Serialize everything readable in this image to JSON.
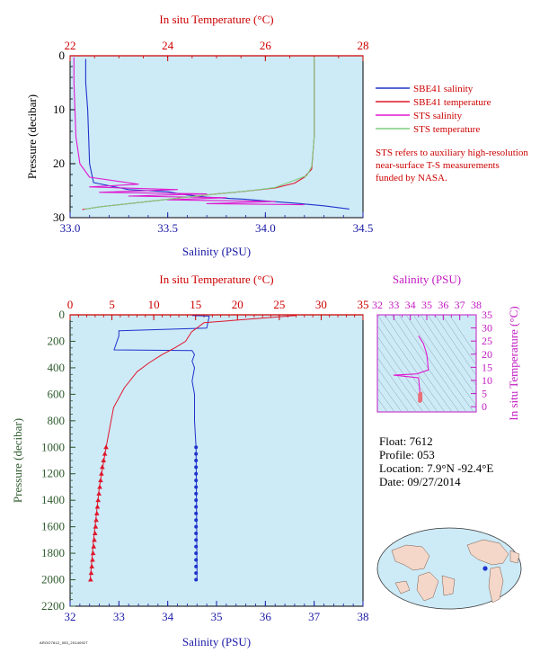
{
  "colors": {
    "plot_bg": "#cdeaf7",
    "blue": "#1f33cc",
    "red": "#e0162b",
    "magenta": "#e01ad0",
    "green": "#7fce7f",
    "axis_blue": "#1a1aa6",
    "axis_red": "#cc0000",
    "axis_green": "#2e5b2e",
    "axis_magenta": "#c21bc2"
  },
  "chart_data": [
    {
      "type": "line",
      "title": "",
      "x_top_label": "In situ Temperature (°C)",
      "x_top_ticks": [
        "22",
        "24",
        "26",
        "28"
      ],
      "x_top_lim": [
        22,
        28
      ],
      "x_bottom_label": "Salinity (PSU)",
      "x_bottom_ticks": [
        "33.0",
        "33.5",
        "34.0",
        "34.5"
      ],
      "x_bottom_lim": [
        33.0,
        34.5
      ],
      "ylabel": "Pressure (decibar)",
      "y_ticks": [
        "0",
        "10",
        "20",
        "30"
      ],
      "ylim": [
        0,
        30
      ],
      "y_inverted": true,
      "legend": [
        "SBE41 salinity",
        "SBE41 temperature",
        "STS salinity",
        "STS temperature"
      ],
      "note": "STS refers to auxiliary high-resolution near-surface T-S measurements funded by NASA.",
      "series": [
        {
          "name": "SBE41 salinity",
          "axis": "salinity",
          "color": "blue",
          "x": [
            33.08,
            33.08,
            33.09,
            33.1,
            33.12,
            33.3,
            33.5,
            33.6,
            33.7,
            33.9,
            34.0,
            34.15,
            34.3,
            34.43
          ],
          "y": [
            0.6,
            5,
            10,
            20,
            23.5,
            24.8,
            25.2,
            25.8,
            26.2,
            26.6,
            26.9,
            27.3,
            27.8,
            28.4
          ]
        },
        {
          "name": "SBE41 temperature",
          "axis": "temperature",
          "color": "red",
          "x": [
            27.0,
            27.0,
            27.0,
            26.95,
            26.8,
            26.6,
            26.2,
            25.6,
            25.0,
            24.4,
            23.8,
            23.2,
            22.6,
            22.25
          ],
          "y": [
            0.6,
            5,
            15,
            21,
            22.5,
            23.6,
            24.5,
            25.1,
            25.6,
            26.2,
            26.8,
            27.4,
            28.0,
            28.5
          ]
        },
        {
          "name": "STS salinity",
          "axis": "salinity",
          "color": "magenta",
          "x": [
            33.02,
            33.02,
            33.03,
            33.05,
            33.1,
            33.35,
            33.1,
            33.55,
            33.15,
            33.7,
            33.3,
            33.8,
            33.5,
            34.05,
            33.7,
            34.2
          ],
          "y": [
            0.3,
            5,
            15,
            20,
            22.5,
            23.8,
            24.3,
            24.8,
            25.3,
            25.6,
            26.0,
            26.3,
            26.7,
            27.0,
            27.4,
            27.6
          ]
        },
        {
          "name": "STS temperature",
          "axis": "temperature",
          "color": "green",
          "x": [
            27.0,
            27.0,
            27.0,
            26.95,
            26.85,
            26.5,
            26.2,
            25.7,
            25.1,
            24.5,
            23.9,
            23.3,
            22.7,
            22.3
          ],
          "y": [
            0.3,
            5,
            15,
            20.5,
            22.2,
            23.4,
            24.4,
            25.0,
            25.5,
            26.1,
            26.7,
            27.3,
            27.9,
            28.4
          ]
        }
      ]
    },
    {
      "type": "line",
      "title": "",
      "x_top_label": "In situ Temperature (°C)",
      "x_top_ticks": [
        "0",
        "5",
        "10",
        "15",
        "20",
        "25",
        "30",
        "35"
      ],
      "x_top_lim": [
        0,
        35
      ],
      "x_bottom_label": "Salinity (PSU)",
      "x_bottom_ticks": [
        "32",
        "33",
        "34",
        "35",
        "36",
        "37",
        "38"
      ],
      "x_bottom_lim": [
        32,
        38
      ],
      "ylabel": "Pressure (decibar)",
      "y_ticks": [
        "0",
        "200",
        "400",
        "600",
        "800",
        "1000",
        "1200",
        "1400",
        "1600",
        "1800",
        "2000",
        "2200"
      ],
      "ylim": [
        0,
        2200
      ],
      "y_inverted": true,
      "series": [
        {
          "axis": "salinity",
          "color": "blue",
          "x": [
            34.5,
            34.85,
            34.8,
            33.0,
            33.0,
            32.9,
            34.5,
            34.55,
            34.5,
            34.55,
            34.5,
            34.55,
            34.55,
            34.58,
            34.6
          ],
          "y": [
            5,
            10,
            100,
            120,
            160,
            265,
            270,
            300,
            350,
            400,
            500,
            600,
            800,
            1000,
            2000
          ]
        },
        {
          "axis": "temperature",
          "color": "red",
          "x": [
            27.0,
            16.0,
            14.5,
            13.8,
            12.5,
            11.0,
            9.5,
            8.0,
            6.5,
            5.2,
            4.3,
            3.5,
            2.8,
            2.4
          ],
          "y": [
            5,
            60,
            130,
            200,
            250,
            300,
            360,
            430,
            550,
            700,
            1000,
            1300,
            1700,
            2000
          ]
        }
      ],
      "markers": {
        "salinity_points": {
          "x": 34.58,
          "y": [
            1000,
            1050,
            1100,
            1150,
            1200,
            1250,
            1300,
            1350,
            1400,
            1450,
            1500,
            1550,
            1600,
            1650,
            1700,
            1750,
            1800,
            1850,
            1900,
            1950,
            2000
          ]
        },
        "temperature_points": {
          "x": [
            4.3,
            4.15,
            4.0,
            3.85,
            3.75,
            3.65,
            3.55,
            3.45,
            3.35,
            3.27,
            3.2,
            3.12,
            3.05,
            2.98,
            2.9,
            2.82,
            2.75,
            2.68,
            2.6,
            2.52,
            2.45
          ],
          "y": [
            1000,
            1050,
            1100,
            1150,
            1200,
            1250,
            1300,
            1350,
            1400,
            1450,
            1500,
            1550,
            1600,
            1650,
            1700,
            1750,
            1800,
            1850,
            1900,
            1950,
            2000
          ]
        }
      }
    },
    {
      "type": "scatter",
      "title": "",
      "x_top_label": "Salinity (PSU)",
      "x_top_ticks": [
        "32",
        "33",
        "34",
        "35",
        "36",
        "37",
        "38"
      ],
      "x_top_lim": [
        32,
        38
      ],
      "ylabel": "In situ Temperature (°C)",
      "y_ticks": [
        "0",
        "5",
        "10",
        "15",
        "20",
        "25",
        "30",
        "35"
      ],
      "ylim": [
        -2,
        35
      ],
      "series": [
        {
          "color": "magenta",
          "x": [
            34.5,
            34.8,
            35.0,
            35.1,
            34.4,
            33.0,
            34.5,
            34.55,
            34.6
          ],
          "y": [
            27.0,
            24.0,
            20.0,
            14.0,
            12.5,
            12.0,
            11.0,
            8.0,
            3.0
          ]
        }
      ]
    }
  ],
  "info": {
    "float": "Float:  7612",
    "profile": "Profile:  053",
    "location": "Location:  7.9°N  -92.4°E",
    "date": "Date:  09/27/2014"
  },
  "map": {
    "marker_color": "#1f33cc"
  },
  "stamp": "ARGO7612_053_20140927"
}
